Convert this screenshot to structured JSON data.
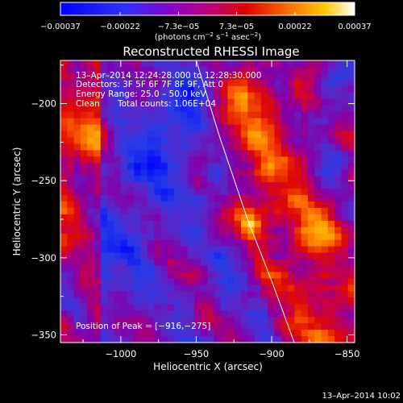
{
  "chart_data": {
    "type": "heatmap",
    "title": "Reconstructed RHESSI Image",
    "xlabel": "Heliocentric X (arcsec)",
    "ylabel": "Heliocentric Y (arcsec)",
    "xlim": [
      -1040,
      -845
    ],
    "ylim": [
      -355,
      -172
    ],
    "x_ticks": [
      -1000,
      -950,
      -900,
      -850
    ],
    "x_tick_labels": [
      "−1000",
      "−950",
      "−900",
      "−850"
    ],
    "y_ticks": [
      -200,
      -250,
      -300,
      -350
    ],
    "y_tick_labels": [
      "−200",
      "−250",
      "−300",
      "−350"
    ],
    "colorbar": {
      "ticks": [
        -0.00037,
        -0.00022,
        -7.3e-05,
        7.3e-05,
        0.00022,
        0.00037
      ],
      "tick_labels": [
        "−0.00037",
        "−0.00022",
        "−7.3e−05",
        "7.3e−05",
        "0.00022",
        "0.00037"
      ],
      "units_parts": [
        "(photons cm",
        "−2",
        " s",
        "−1",
        " asec",
        "−2",
        ")"
      ],
      "range": [
        -0.00037,
        0.00037
      ]
    },
    "annotations": {
      "time_range": "13–Apr–2014 12:24:28.000 to 12:28:30.000",
      "detectors": "Detectors: 3F 5F 6F 7F 8F 9F, Att 0",
      "energy_range": "Energy Range: 25.0 – 50.0 keV",
      "clean_label": "Clean",
      "total_counts": "Total counts: 1.06E+04",
      "peak_position": "Position of Peak = [−916,−275]"
    },
    "peak": [
      -916,
      -275
    ],
    "limb_curve": [
      [
        -950,
        -172
      ],
      [
        -935,
        -220
      ],
      [
        -916,
        -275
      ],
      [
        -900,
        -315
      ],
      [
        -885,
        -355
      ]
    ]
  },
  "footer": {
    "timestamp": "13–Apr–2014 10:02"
  }
}
